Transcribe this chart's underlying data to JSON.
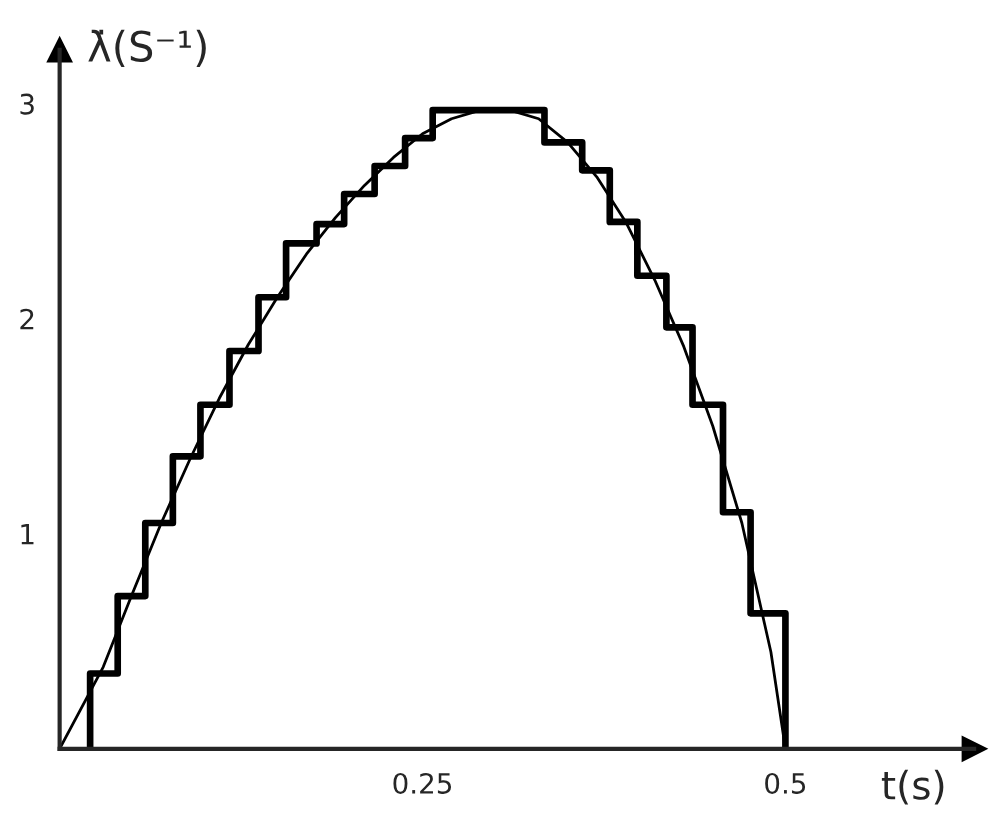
{
  "chart_data": {
    "type": "line",
    "xlabel": "t(s)",
    "ylabel": "λ̇(S⁻¹)",
    "xlim": [
      0,
      0.63
    ],
    "ylim": [
      0,
      3.25
    ],
    "xticks": [
      0.25,
      0.5
    ],
    "yticks": [
      1,
      2,
      3
    ],
    "grid": false,
    "legend": false,
    "marker": "none",
    "series": [
      {
        "color": "#000000",
        "line_style": "solid",
        "x": [
          0,
          0.03,
          0.05,
          0.07,
          0.09,
          0.11,
          0.13,
          0.15,
          0.17,
          0.19,
          0.21,
          0.23,
          0.25,
          0.27,
          0.29,
          0.31,
          0.33,
          0.35,
          0.37,
          0.39,
          0.41,
          0.43,
          0.45,
          0.47,
          0.49,
          0.5
        ],
        "values": [
          0,
          0.38,
          0.72,
          1.05,
          1.35,
          1.63,
          1.88,
          2.1,
          2.3,
          2.47,
          2.62,
          2.75,
          2.86,
          2.93,
          2.97,
          2.97,
          2.93,
          2.82,
          2.66,
          2.45,
          2.18,
          1.87,
          1.5,
          1.05,
          0.45,
          0
        ]
      },
      {
        "type": "step",
        "color": "#000000",
        "line_style": "solid",
        "x": [
          0.021,
          0.021,
          0.04,
          0.059,
          0.078,
          0.097,
          0.117,
          0.137,
          0.156,
          0.177,
          0.196,
          0.217,
          0.238,
          0.257,
          0.334,
          0.36,
          0.379,
          0.398,
          0.418,
          0.436,
          0.457,
          0.476,
          0.5
        ],
        "values": [
          0,
          0.35,
          0.71,
          1.05,
          1.36,
          1.6,
          1.85,
          2.1,
          2.35,
          2.44,
          2.58,
          2.71,
          2.84,
          2.97,
          2.82,
          2.69,
          2.45,
          2.2,
          1.96,
          1.6,
          1.1,
          0.63,
          0
        ]
      }
    ]
  }
}
